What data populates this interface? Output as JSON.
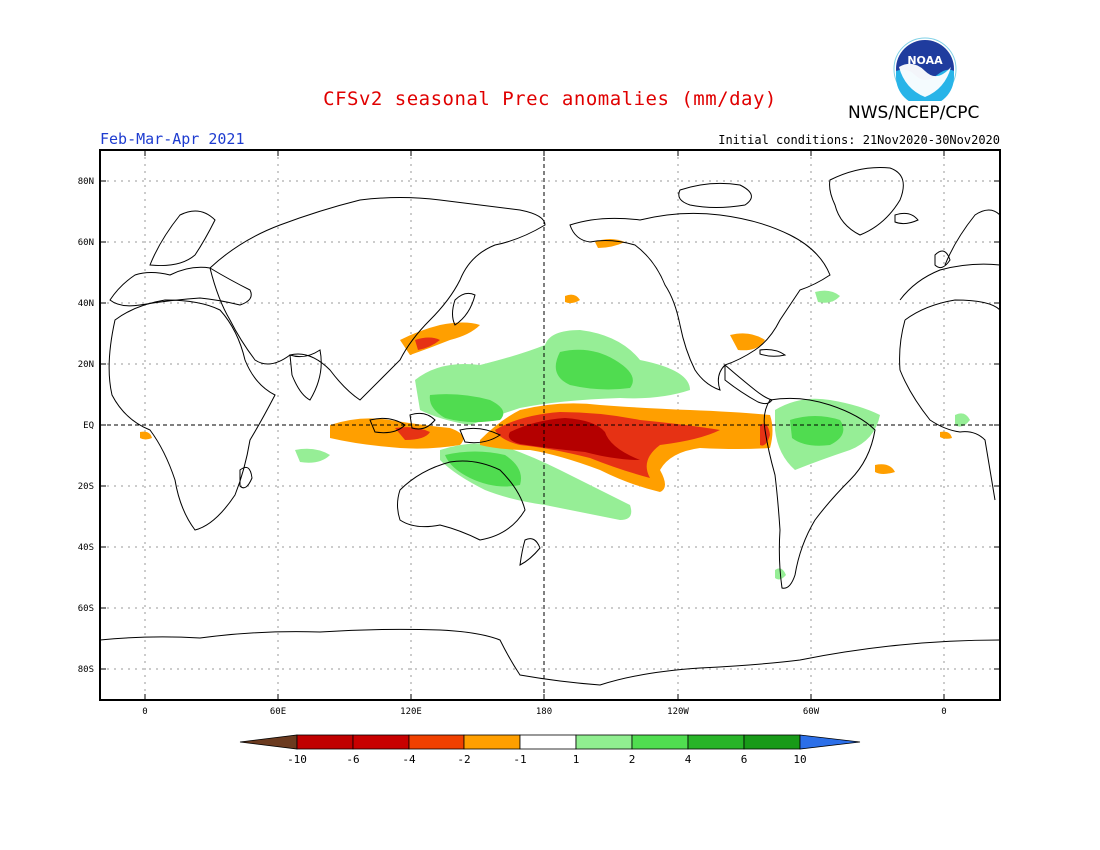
{
  "title": "CFSv2 seasonal Prec anomalies (mm/day)",
  "agency": "NWS/NCEP/CPC",
  "logo_text": "NOAA",
  "season": "Feb-Mar-Apr 2021",
  "initial_conditions": "Initial conditions: 21Nov2020-30Nov2020",
  "lat_labels": [
    "80N",
    "60N",
    "40N",
    "20N",
    "EQ",
    "20S",
    "40S",
    "60S",
    "80S"
  ],
  "lon_labels": [
    "0",
    "60E",
    "120E",
    "180",
    "120W",
    "60W",
    "0"
  ],
  "colorbar": {
    "labels": [
      "-10",
      "-6",
      "-4",
      "-2",
      "-1",
      "1",
      "2",
      "4",
      "6",
      "10"
    ],
    "colors": [
      "#6b3a1f",
      "#c00000",
      "#c80000",
      "#f04000",
      "#ff9f00",
      "#ffffff",
      "#90ee90",
      "#50dd50",
      "#28b428",
      "#189a18",
      "#2c6fe8"
    ]
  },
  "colors": {
    "dry_strong": "#b40000",
    "dry_med": "#e63214",
    "dry_light": "#ff9f00",
    "wet_light": "#96ee96",
    "wet_med": "#50dc50",
    "title": "#e00000",
    "season": "#1e3cd0"
  }
}
